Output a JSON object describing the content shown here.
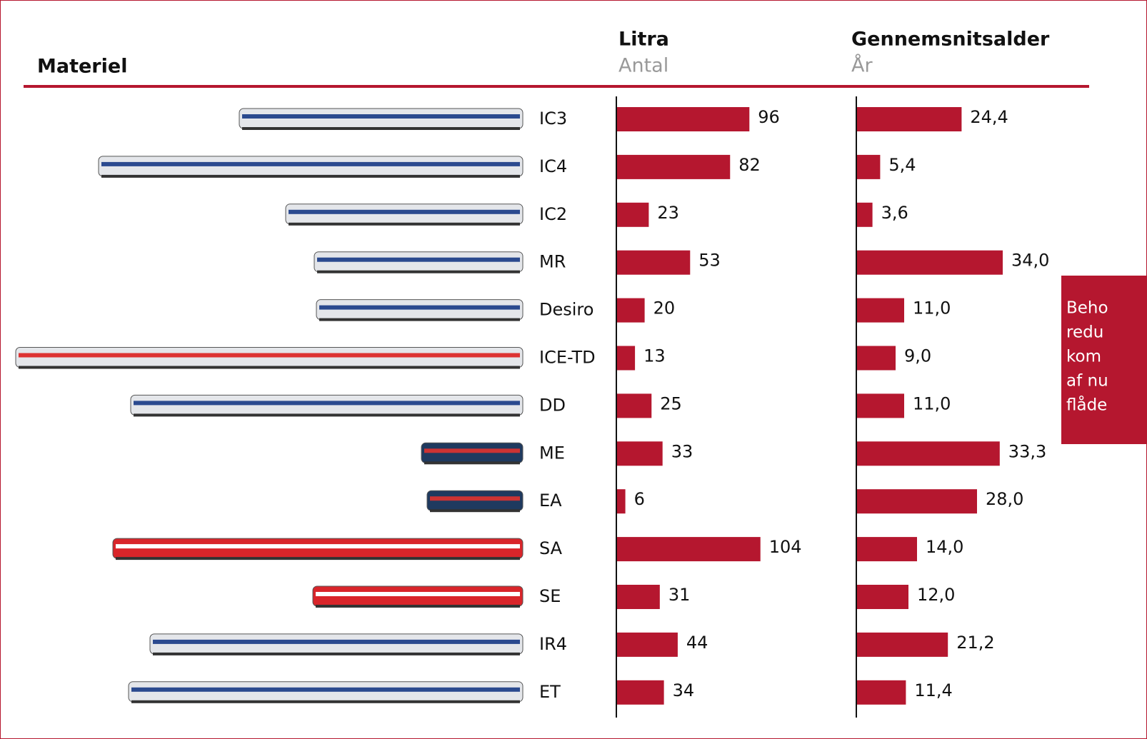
{
  "row_header": "Materiel",
  "note": [
    "Beho",
    "redu",
    "kom",
    "af nu",
    "flåde"
  ],
  "chart_data": [
    {
      "type": "bar",
      "orientation": "horizontal",
      "title": "Litra",
      "subtitle": "Antal",
      "categories": [
        "IC3",
        "IC4",
        "IC2",
        "MR",
        "Desiro",
        "ICE-TD",
        "DD",
        "ME",
        "EA",
        "SA",
        "SE",
        "IR4",
        "ET"
      ],
      "values": [
        96,
        82,
        23,
        53,
        20,
        13,
        25,
        33,
        6,
        104,
        31,
        44,
        34
      ],
      "color": "#b5172f",
      "xlim": [
        0,
        100
      ]
    },
    {
      "type": "bar",
      "orientation": "horizontal",
      "title": "Gennemsnitsalder",
      "subtitle": "År",
      "values": [
        24.4,
        5.4,
        3.6,
        34.0,
        11.0,
        9.0,
        11.0,
        33.3,
        28.0,
        14.0,
        12.0,
        21.2,
        11.4
      ],
      "value_labels": [
        "24,4",
        "5,4",
        "3,6",
        "34,0",
        "11,0",
        "9,0",
        "11,0",
        "33,3",
        "28,0",
        "14,0",
        "12,0",
        "21,2",
        "11,4"
      ],
      "color": "#b5172f",
      "xlim": [
        0,
        10
      ]
    }
  ]
}
